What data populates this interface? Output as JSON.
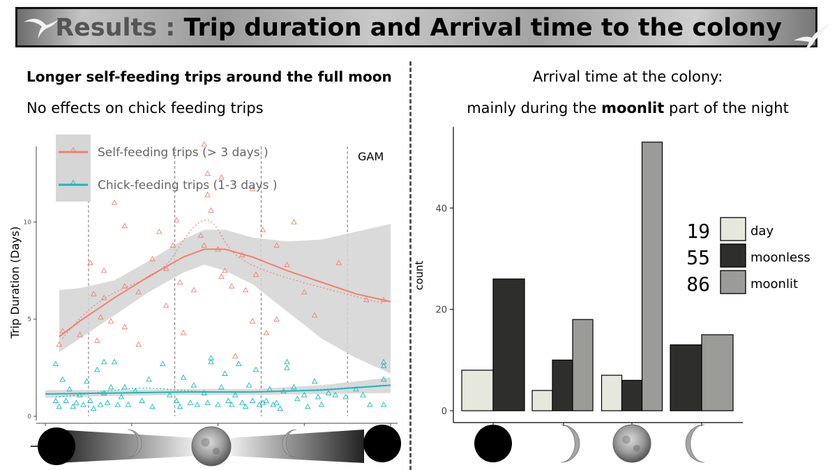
{
  "slide": {
    "title_prefix": "Results :",
    "title_main": "Trip duration and Arrival time to the colony"
  },
  "left_panel": {
    "heading_bold": "Longer self-feeding trips around the full moon",
    "heading_sub": "No effects on chick feeding trips"
  },
  "right_panel": {
    "heading_line1": "Arrival time at the colony:",
    "heading_line2_pre": "mainly during the",
    "heading_line2_bold": "moonlit",
    "heading_line2_post": "part of the night"
  },
  "colors": {
    "self_feeding": "#f08070",
    "chick_feeding": "#1ab8bb",
    "ci_band": "#d3d3d3",
    "day": "#e6e7dd",
    "moonless": "#2e2f2c",
    "moonlit": "#9b9b97"
  },
  "chart_data": [
    {
      "type": "scatter",
      "title": "",
      "annotation": "GAM",
      "xlabel": "",
      "ylabel": "Trip Duration (Days)",
      "y_ticks": [
        "0",
        "5",
        "10"
      ],
      "ylim": [
        0,
        14.5
      ],
      "xlim": [
        0,
        1
      ],
      "grid": false,
      "moon_phase_guides_x": [
        0.125,
        0.375,
        0.625,
        0.875
      ],
      "legend_position": "top-left",
      "series": [
        {
          "name": "Self-feeding trips (> 3 days )",
          "color": "#f08070",
          "fit_x": [
            0.04,
            0.1,
            0.2,
            0.3,
            0.4,
            0.46,
            0.52,
            0.6,
            0.7,
            0.8,
            0.9,
            1.0
          ],
          "fit_y": [
            4.1,
            4.9,
            6.1,
            7.2,
            8.2,
            8.6,
            8.6,
            8.2,
            7.5,
            6.9,
            6.3,
            5.9
          ],
          "ci_lower": [
            3.3,
            4.0,
            5.2,
            6.4,
            7.4,
            7.8,
            7.5,
            6.8,
            5.4,
            4.0,
            3.0,
            2.2
          ],
          "ci_upper": [
            6.5,
            6.6,
            7.0,
            8.0,
            9.1,
            9.6,
            9.6,
            9.2,
            9.0,
            9.1,
            9.5,
            9.9
          ],
          "points": [
            [
              0.04,
              3.7
            ],
            [
              0.05,
              4.4
            ],
            [
              0.1,
              4.2
            ],
            [
              0.13,
              7.9
            ],
            [
              0.14,
              6.3
            ],
            [
              0.15,
              3.9
            ],
            [
              0.16,
              5.1
            ],
            [
              0.17,
              7.5
            ],
            [
              0.17,
              6.1
            ],
            [
              0.19,
              4.9
            ],
            [
              0.2,
              11.0
            ],
            [
              0.23,
              6.7
            ],
            [
              0.23,
              9.8
            ],
            [
              0.23,
              4.6
            ],
            [
              0.27,
              6.4
            ],
            [
              0.27,
              3.7
            ],
            [
              0.31,
              8.1
            ],
            [
              0.33,
              9.5
            ],
            [
              0.35,
              7.6
            ],
            [
              0.35,
              5.7
            ],
            [
              0.37,
              8.8
            ],
            [
              0.38,
              10.1
            ],
            [
              0.39,
              6.9
            ],
            [
              0.4,
              4.3
            ],
            [
              0.43,
              6.5
            ],
            [
              0.45,
              9.3
            ],
            [
              0.46,
              14.0
            ],
            [
              0.46,
              8.8
            ],
            [
              0.47,
              12.5
            ],
            [
              0.47,
              11.4
            ],
            [
              0.48,
              10.6
            ],
            [
              0.5,
              8.6
            ],
            [
              0.51,
              12.3
            ],
            [
              0.51,
              7.2
            ],
            [
              0.52,
              7.5
            ],
            [
              0.54,
              6.7
            ],
            [
              0.55,
              3.1
            ],
            [
              0.57,
              8.3
            ],
            [
              0.58,
              6.5
            ],
            [
              0.6,
              11.7
            ],
            [
              0.6,
              4.9
            ],
            [
              0.61,
              7.3
            ],
            [
              0.63,
              9.6
            ],
            [
              0.64,
              4.3
            ],
            [
              0.67,
              8.8
            ],
            [
              0.67,
              5.0
            ],
            [
              0.7,
              7.8
            ],
            [
              0.72,
              10.0
            ],
            [
              0.75,
              6.4
            ],
            [
              0.78,
              5.2
            ],
            [
              0.85,
              7.9
            ],
            [
              0.93,
              6.0
            ],
            [
              0.98,
              6.0
            ]
          ]
        },
        {
          "name": "Chick-feeding trips (1-3 days )",
          "color": "#1ab8bb",
          "fit_x": [
            0.0,
            0.2,
            0.4,
            0.6,
            0.8,
            1.0
          ],
          "fit_y": [
            1.15,
            1.2,
            1.25,
            1.25,
            1.35,
            1.6
          ],
          "ci_lower": [
            0.95,
            1.05,
            1.1,
            1.1,
            1.15,
            1.2
          ],
          "ci_upper": [
            1.35,
            1.35,
            1.4,
            1.4,
            1.6,
            2.0
          ],
          "points": [
            [
              0.03,
              0.8
            ],
            [
              0.03,
              2.7
            ],
            [
              0.04,
              0.5
            ],
            [
              0.05,
              1.9
            ],
            [
              0.06,
              0.8
            ],
            [
              0.07,
              1.4
            ],
            [
              0.08,
              0.5
            ],
            [
              0.09,
              0.7
            ],
            [
              0.1,
              1.1
            ],
            [
              0.11,
              0.6
            ],
            [
              0.12,
              1.8
            ],
            [
              0.13,
              0.8
            ],
            [
              0.14,
              0.4
            ],
            [
              0.15,
              2.4
            ],
            [
              0.16,
              0.6
            ],
            [
              0.17,
              1.2
            ],
            [
              0.17,
              2.8
            ],
            [
              0.18,
              0.7
            ],
            [
              0.19,
              1.5
            ],
            [
              0.2,
              2.8
            ],
            [
              0.21,
              0.6
            ],
            [
              0.22,
              1.0
            ],
            [
              0.23,
              1.5
            ],
            [
              0.24,
              0.6
            ],
            [
              0.26,
              1.3
            ],
            [
              0.28,
              0.8
            ],
            [
              0.3,
              1.9
            ],
            [
              0.31,
              0.5
            ],
            [
              0.34,
              2.7
            ],
            [
              0.36,
              1.1
            ],
            [
              0.38,
              0.8
            ],
            [
              0.39,
              0.5
            ],
            [
              0.4,
              2.0
            ],
            [
              0.42,
              0.7
            ],
            [
              0.43,
              1.6
            ],
            [
              0.44,
              0.6
            ],
            [
              0.46,
              1.2
            ],
            [
              0.47,
              0.7
            ],
            [
              0.48,
              2.8
            ],
            [
              0.48,
              3.0
            ],
            [
              0.5,
              0.6
            ],
            [
              0.51,
              1.5
            ],
            [
              0.52,
              2.2
            ],
            [
              0.53,
              0.8
            ],
            [
              0.54,
              0.6
            ],
            [
              0.55,
              1.1
            ],
            [
              0.56,
              2.7
            ],
            [
              0.57,
              0.7
            ],
            [
              0.58,
              0.5
            ],
            [
              0.59,
              1.6
            ],
            [
              0.6,
              0.8
            ],
            [
              0.61,
              2.4
            ],
            [
              0.62,
              0.6
            ],
            [
              0.63,
              0.7
            ],
            [
              0.64,
              0.8
            ],
            [
              0.65,
              1.4
            ],
            [
              0.66,
              0.6
            ],
            [
              0.67,
              0.7
            ],
            [
              0.68,
              0.4
            ],
            [
              0.69,
              1.3
            ],
            [
              0.7,
              2.5
            ],
            [
              0.7,
              2.8
            ],
            [
              0.72,
              1.5
            ],
            [
              0.73,
              0.9
            ],
            [
              0.75,
              1.1
            ],
            [
              0.76,
              0.5
            ],
            [
              0.78,
              1.8
            ],
            [
              0.79,
              1.0
            ],
            [
              0.8,
              0.6
            ],
            [
              0.82,
              1.2
            ],
            [
              0.84,
              1.1
            ],
            [
              0.87,
              1.0
            ],
            [
              0.9,
              1.4
            ],
            [
              0.92,
              1.1
            ],
            [
              0.94,
              0.6
            ],
            [
              0.98,
              0.6
            ],
            [
              0.98,
              1.9
            ],
            [
              0.98,
              2.6
            ],
            [
              0.98,
              2.8
            ]
          ]
        }
      ]
    },
    {
      "type": "bar",
      "title": "",
      "xlabel": "",
      "ylabel": "count",
      "y_ticks": [
        "0",
        "20",
        "40"
      ],
      "ylim": [
        0,
        56
      ],
      "grid": false,
      "legend_position": "right",
      "groups": [
        "new-moon",
        "waxing-crescent",
        "full-moon",
        "waning-crescent"
      ],
      "series": [
        {
          "name": "day",
          "legend_count": "19",
          "color": "#e6e7dd",
          "values": [
            8,
            4,
            7,
            null
          ]
        },
        {
          "name": "moonless",
          "legend_count": "55",
          "color": "#2e2f2c",
          "values": [
            26,
            10,
            6,
            13
          ]
        },
        {
          "name": "moonlit",
          "legend_count": "86",
          "color": "#9b9b97",
          "values": [
            null,
            18,
            53,
            15
          ]
        }
      ]
    }
  ],
  "icons": {
    "title_left": "albatross-silhouette-icon",
    "title_right": "albatross-silhouette-icon",
    "left_axis": [
      "new-moon-icon",
      "waxing-crescent-icon",
      "full-moon-icon",
      "waning-crescent-icon",
      "new-moon-icon"
    ],
    "right_axis": [
      "new-moon-icon",
      "waxing-crescent-icon",
      "full-moon-icon",
      "waning-crescent-icon"
    ]
  }
}
